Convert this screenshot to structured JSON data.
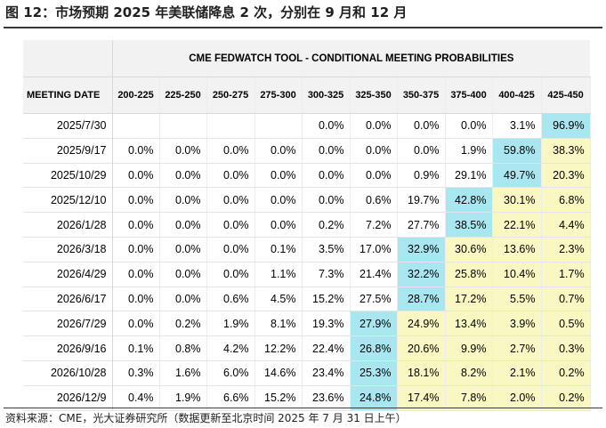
{
  "figure_title": "图 12：市场预期 2025 年美联储降息 2 次，分别在 9 月和 12 月",
  "source_note": "资料来源：CME，光大证券研究所（数据更新至北京时间 2025 年 7 月 31 日上午）",
  "colors": {
    "highlight": "#a8e6f0",
    "above": "#f9f7c2",
    "header_bg": "#f2f2f2"
  },
  "chart_data": {
    "type": "table",
    "title": "CME FEDWATCH TOOL - CONDITIONAL MEETING PROBABILITIES",
    "row_header": "MEETING DATE",
    "columns": [
      "200-225",
      "225-250",
      "250-275",
      "275-300",
      "300-325",
      "325-350",
      "350-375",
      "375-400",
      "400-425",
      "425-450"
    ],
    "rows": [
      {
        "date": "2025/7/30",
        "values": [
          "",
          "",
          "",
          "",
          "0.0%",
          "0.0%",
          "0.0%",
          "0.0%",
          "3.1%",
          "96.9%"
        ],
        "max": 9
      },
      {
        "date": "2025/9/17",
        "values": [
          "0.0%",
          "0.0%",
          "0.0%",
          "0.0%",
          "0.0%",
          "0.0%",
          "0.0%",
          "1.9%",
          "59.8%",
          "38.3%"
        ],
        "max": 8
      },
      {
        "date": "2025/10/29",
        "values": [
          "0.0%",
          "0.0%",
          "0.0%",
          "0.0%",
          "0.0%",
          "0.0%",
          "0.9%",
          "29.1%",
          "49.7%",
          "20.3%"
        ],
        "max": 8
      },
      {
        "date": "2025/12/10",
        "values": [
          "0.0%",
          "0.0%",
          "0.0%",
          "0.0%",
          "0.0%",
          "0.6%",
          "19.7%",
          "42.8%",
          "30.1%",
          "6.8%"
        ],
        "max": 7
      },
      {
        "date": "2026/1/28",
        "values": [
          "0.0%",
          "0.0%",
          "0.0%",
          "0.0%",
          "0.2%",
          "7.2%",
          "27.7%",
          "38.5%",
          "22.1%",
          "4.4%"
        ],
        "max": 7
      },
      {
        "date": "2026/3/18",
        "values": [
          "0.0%",
          "0.0%",
          "0.0%",
          "0.1%",
          "3.5%",
          "17.0%",
          "32.9%",
          "30.6%",
          "13.6%",
          "2.3%"
        ],
        "max": 6
      },
      {
        "date": "2026/4/29",
        "values": [
          "0.0%",
          "0.0%",
          "0.0%",
          "1.1%",
          "7.3%",
          "21.4%",
          "32.2%",
          "25.8%",
          "10.4%",
          "1.7%"
        ],
        "max": 6
      },
      {
        "date": "2026/6/17",
        "values": [
          "0.0%",
          "0.0%",
          "0.6%",
          "4.5%",
          "15.2%",
          "27.5%",
          "28.7%",
          "17.2%",
          "5.5%",
          "0.7%"
        ],
        "max": 6
      },
      {
        "date": "2026/7/29",
        "values": [
          "0.0%",
          "0.2%",
          "1.9%",
          "8.1%",
          "19.3%",
          "27.9%",
          "24.9%",
          "13.4%",
          "3.9%",
          "0.5%"
        ],
        "max": 5
      },
      {
        "date": "2026/9/16",
        "values": [
          "0.1%",
          "0.8%",
          "4.2%",
          "12.2%",
          "22.4%",
          "26.8%",
          "20.6%",
          "9.9%",
          "2.7%",
          "0.3%"
        ],
        "max": 5
      },
      {
        "date": "2026/10/28",
        "values": [
          "0.3%",
          "1.6%",
          "6.0%",
          "14.6%",
          "23.4%",
          "25.3%",
          "18.1%",
          "8.2%",
          "2.1%",
          "0.2%"
        ],
        "max": 5
      },
      {
        "date": "2026/12/9",
        "values": [
          "0.4%",
          "1.9%",
          "6.6%",
          "15.2%",
          "23.6%",
          "24.8%",
          "17.4%",
          "7.8%",
          "2.0%",
          "0.2%"
        ],
        "max": 5
      }
    ]
  }
}
